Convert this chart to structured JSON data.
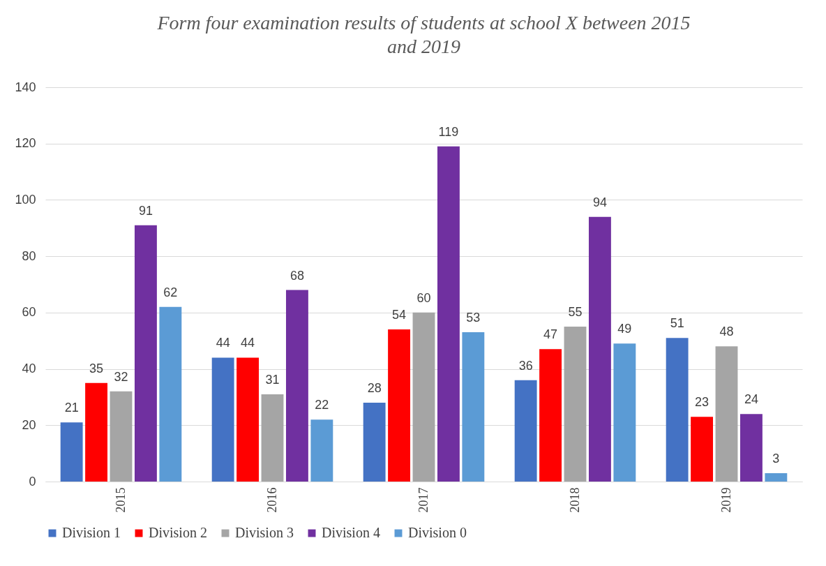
{
  "chart_data": {
    "type": "bar",
    "title": "Form four examination results of students at school X between 2015 and 2019",
    "categories": [
      "2015",
      "2016",
      "2017",
      "2018",
      "2019"
    ],
    "series": [
      {
        "name": "Division 1",
        "color": "#4472c4",
        "values": [
          21,
          44,
          28,
          36,
          51
        ]
      },
      {
        "name": "Division 2",
        "color": "#ff0000",
        "values": [
          35,
          44,
          54,
          47,
          23
        ]
      },
      {
        "name": "Division 3",
        "color": "#a5a5a5",
        "values": [
          32,
          31,
          60,
          55,
          48
        ]
      },
      {
        "name": "Division 4",
        "color": "#7030a0",
        "values": [
          91,
          68,
          119,
          94,
          24
        ]
      },
      {
        "name": "Division 0",
        "color": "#5b9bd5",
        "values": [
          62,
          22,
          53,
          49,
          3
        ]
      }
    ],
    "ylim": [
      0,
      140
    ],
    "yticks": [
      0,
      20,
      40,
      60,
      80,
      100,
      120,
      140
    ],
    "grid": "y",
    "legend": "bottom",
    "data_labels": true
  }
}
